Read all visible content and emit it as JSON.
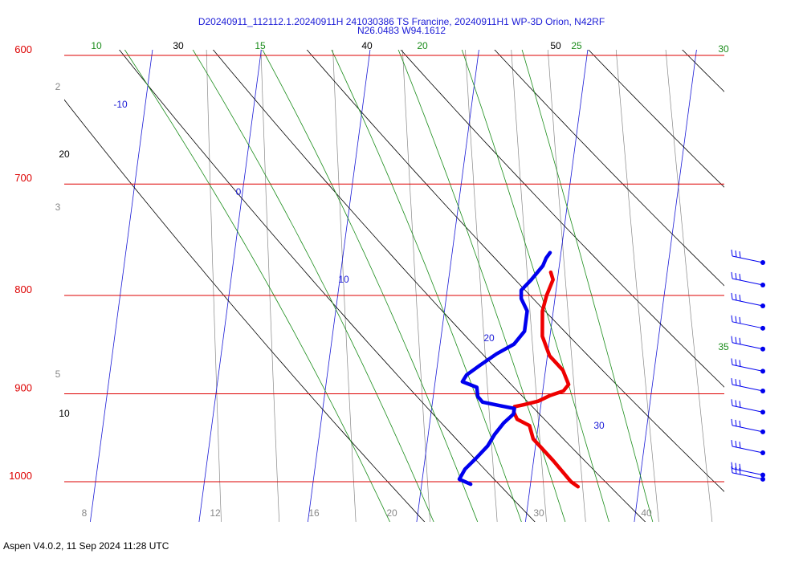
{
  "title_line1": "D20240911_112112.1.20240911H 241030386 TS Francine, 20240911H1 WP-3D Orion, N42RF",
  "title_line2": "N26.0483 W94.1612",
  "footer": "Aspen V4.0.2, 11 Sep 2024  11:28 UTC",
  "colors": {
    "isobar": "#dd0000",
    "isotherm": "#1a1ad6",
    "dry_adiabat": "#000000",
    "moist_adiabat": "#1a8c1a",
    "mixing_ratio": "#888888",
    "temperature": "#ee0000",
    "dewpoint": "#0000ee"
  },
  "chart_data": {
    "type": "line",
    "pressure_labels": [
      "600",
      "700",
      "800",
      "900",
      "1000"
    ],
    "bottom_tick_labels": [
      "8",
      "12",
      "16",
      "20",
      "30",
      "40"
    ],
    "isotherm_labels": [
      "-10",
      "0",
      "10",
      "20",
      "30"
    ],
    "dry_adiabat_labels": [
      "30",
      "40",
      "50",
      "20",
      "10"
    ],
    "moist_adiabat_labels": [
      "10",
      "15",
      "20",
      "25",
      "30",
      "35"
    ],
    "mixing_ratio_labels": [
      "2",
      "3",
      "5"
    ],
    "series": [
      {
        "points": [
          {
            "p": 778,
            "t": 19.3
          },
          {
            "p": 785,
            "t": 19.6
          },
          {
            "p": 800,
            "t": 19.2
          },
          {
            "p": 815,
            "t": 19.0
          },
          {
            "p": 840,
            "t": 19.3
          },
          {
            "p": 860,
            "t": 20.2
          },
          {
            "p": 875,
            "t": 21.6
          },
          {
            "p": 890,
            "t": 22.3
          },
          {
            "p": 897,
            "t": 21.9
          },
          {
            "p": 902,
            "t": 20.7
          },
          {
            "p": 908,
            "t": 19.7
          },
          {
            "p": 912,
            "t": 18.4
          },
          {
            "p": 914,
            "t": 17.6
          },
          {
            "p": 920,
            "t": 17.6
          },
          {
            "p": 928,
            "t": 18.0
          },
          {
            "p": 935,
            "t": 19.2
          },
          {
            "p": 950,
            "t": 19.7
          },
          {
            "p": 975,
            "t": 21.8
          },
          {
            "p": 1000,
            "t": 23.7
          },
          {
            "p": 1006,
            "t": 24.4
          }
        ]
      },
      {
        "points": [
          {
            "p": 760,
            "t": 19.0
          },
          {
            "p": 765,
            "t": 18.7
          },
          {
            "p": 772,
            "t": 18.5
          },
          {
            "p": 785,
            "t": 17.6
          },
          {
            "p": 795,
            "t": 16.8
          },
          {
            "p": 803,
            "t": 16.9
          },
          {
            "p": 815,
            "t": 17.6
          },
          {
            "p": 835,
            "t": 17.6
          },
          {
            "p": 848,
            "t": 16.8
          },
          {
            "p": 858,
            "t": 15.3
          },
          {
            "p": 870,
            "t": 13.9
          },
          {
            "p": 880,
            "t": 12.8
          },
          {
            "p": 887,
            "t": 12.5
          },
          {
            "p": 893,
            "t": 13.9
          },
          {
            "p": 903,
            "t": 14.1
          },
          {
            "p": 909,
            "t": 14.6
          },
          {
            "p": 913,
            "t": 16.3
          },
          {
            "p": 916,
            "t": 17.6
          },
          {
            "p": 922,
            "t": 17.6
          },
          {
            "p": 932,
            "t": 16.8
          },
          {
            "p": 945,
            "t": 16.1
          },
          {
            "p": 958,
            "t": 15.6
          },
          {
            "p": 972,
            "t": 14.7
          },
          {
            "p": 985,
            "t": 13.8
          },
          {
            "p": 997,
            "t": 13.4
          },
          {
            "p": 1003,
            "t": 14.5
          }
        ]
      }
    ],
    "wind_barbs": [
      {
        "p": 769
      },
      {
        "p": 790
      },
      {
        "p": 810
      },
      {
        "p": 832
      },
      {
        "p": 853
      },
      {
        "p": 876
      },
      {
        "p": 897
      },
      {
        "p": 920
      },
      {
        "p": 942
      },
      {
        "p": 966
      },
      {
        "p": 992
      },
      {
        "p": 997
      }
    ]
  }
}
